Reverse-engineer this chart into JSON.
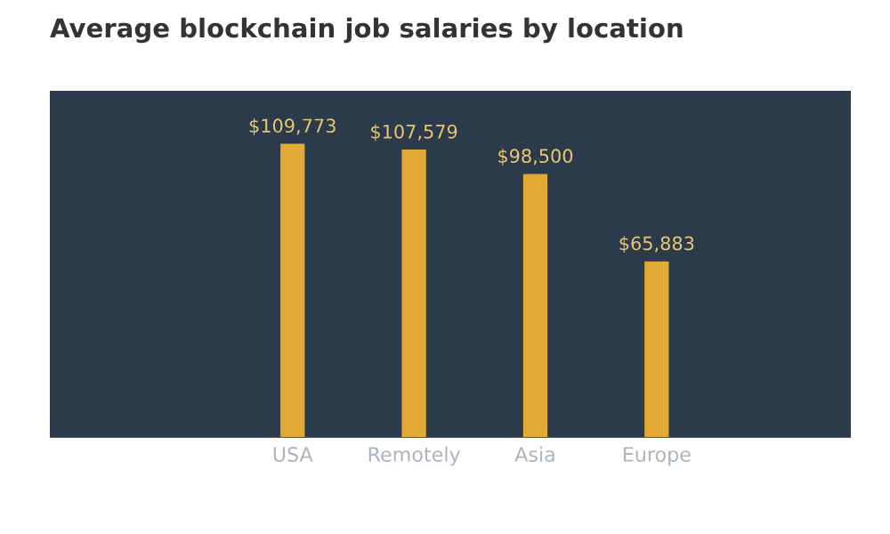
{
  "chart_data": {
    "type": "bar",
    "title": "Average blockchain job salaries by location",
    "categories": [
      "USA",
      "Remotely",
      "Asia",
      "Europe"
    ],
    "values": [
      109773,
      107579,
      98500,
      65883
    ],
    "value_labels": [
      "$109,773",
      "$107,579",
      "$98,500",
      "$65,883"
    ],
    "color": "#e2aa35",
    "grid": false
  }
}
